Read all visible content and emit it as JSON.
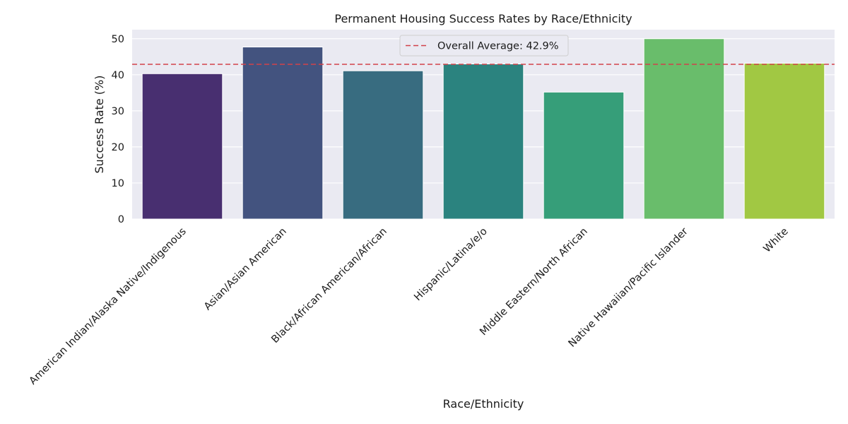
{
  "chart_data": {
    "type": "bar",
    "title": "Permanent Housing Success Rates by Race/Ethnicity",
    "xlabel": "Race/Ethnicity",
    "ylabel": "Success Rate (%)",
    "categories": [
      "American Indian/Alaska Native/Indigenous",
      "Asian/Asian American",
      "Black/African American/African",
      "Hispanic/Latina/e/o",
      "Middle Eastern/North African",
      "Native Hawaiian/Pacific Islander",
      "White"
    ],
    "values": [
      40.3,
      47.7,
      41.1,
      43.0,
      35.2,
      50.0,
      43.2
    ],
    "colors": [
      "#482f70",
      "#43537f",
      "#386c80",
      "#2b837f",
      "#369e79",
      "#69bd6b",
      "#a1c843"
    ],
    "ylim": [
      0,
      52.5
    ],
    "yticks": [
      0,
      10,
      20,
      30,
      40,
      50
    ],
    "grid": true,
    "reference_line": {
      "value": 42.9,
      "label": "Overall Average: 42.9%",
      "color": "#d1424a",
      "style": "dashed"
    },
    "legend": {
      "placement": "top-center"
    },
    "colors_theme": {
      "plot_background": "#eaeaf2",
      "grid": "#ffffff",
      "text": "#1a1a1a"
    }
  }
}
